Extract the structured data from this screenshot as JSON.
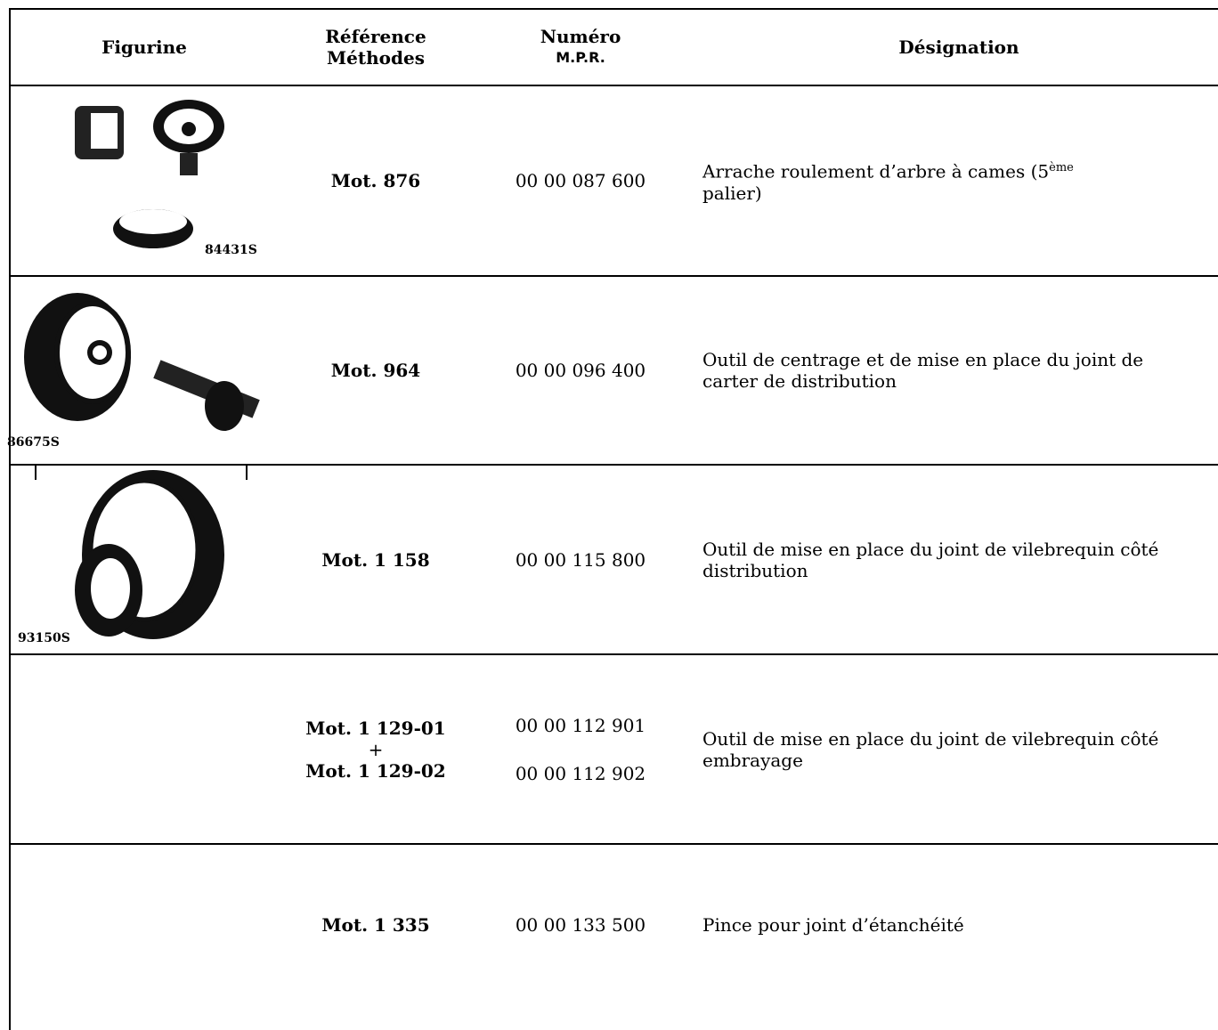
{
  "table": {
    "header": [
      "Figurine",
      [
        "Référence",
        "Méthodes"
      ],
      [
        "Numéro",
        "M.P.R."
      ],
      "Désignation"
    ],
    "rows": [
      {
        "figure_label": "84431S",
        "reference": [
          "Mot. 876"
        ],
        "number": [
          "00 00 087 600"
        ],
        "designation": [
          "Arrache roulement d’arbre à cames (5",
          "ème",
          "palier)"
        ]
      },
      {
        "figure_label": "86675S",
        "reference": [
          "Mot. 964"
        ],
        "number": [
          "00 00 096 400"
        ],
        "designation": [
          "Outil de centrage et de mise en place du joint de carter de distribution"
        ]
      },
      {
        "figure_label": "93150S",
        "reference": [
          "Mot. 1 158"
        ],
        "number": [
          "00 00 115 800"
        ],
        "designation": [
          "Outil de mise en place du joint de vilebrequin côté distribution"
        ]
      },
      {
        "reference": [
          "Mot. 1 129-01",
          "+",
          "Mot. 1 129-02"
        ],
        "number": [
          "00 00 112 901",
          "00 00 112 902"
        ],
        "designation": [
          "Outil de mise en place du joint de vilebrequin côté embrayage"
        ]
      },
      {
        "reference": [
          "Mot. 1 335"
        ],
        "number": [
          "00 00 133 500"
        ],
        "designation": [
          "Pince pour joint d’étanchéité"
        ]
      }
    ]
  }
}
